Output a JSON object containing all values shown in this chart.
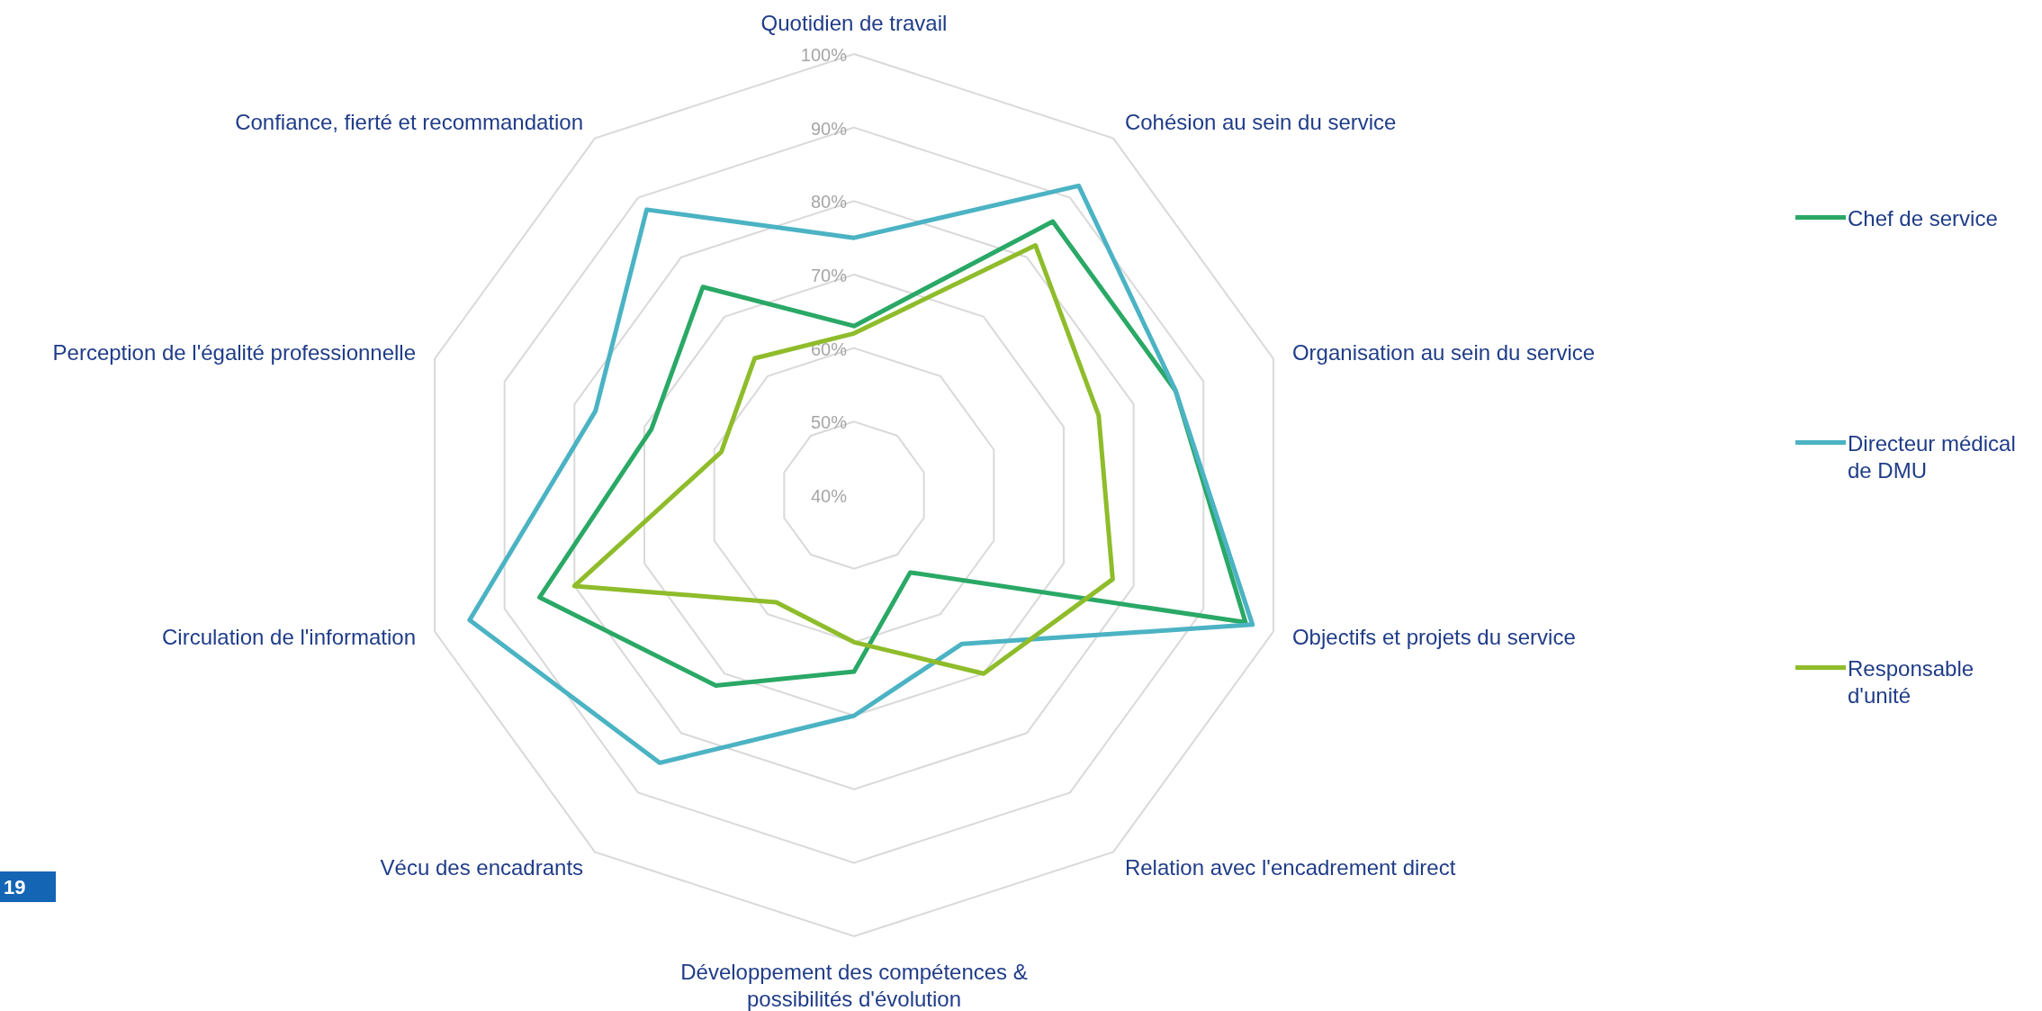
{
  "chart_data": {
    "type": "radar",
    "categories": [
      "Quotidien de travail",
      "Cohésion au sein du service",
      "Organisation au sein du service",
      "Objectifs et projets du service",
      "Relation avec l'encadrement direct",
      "Développement des compétences & possibilités d'évolution",
      "Vécu des encadrants",
      "Circulation de l'information",
      "Perception de l'égalité professionnelle",
      "Confiance, fierté et recommandation"
    ],
    "series": [
      {
        "name": "Chef de service",
        "color": "#2aa866",
        "values": [
          63,
          86,
          86,
          96,
          53,
          64,
          72,
          85,
          69,
          75
        ]
      },
      {
        "name": "Directeur médical de DMU",
        "color": "#4bb3c3",
        "values": [
          75,
          92,
          86,
          97,
          65,
          70,
          85,
          95,
          77,
          88
        ]
      },
      {
        "name": "Responsable d'unité",
        "color": "#8fbc2b",
        "values": [
          62,
          82,
          75,
          77,
          70,
          60,
          58,
          80,
          59,
          63
        ]
      }
    ],
    "ylim": [
      40,
      100
    ],
    "yticks": [
      {
        "value": 40,
        "label": "40%"
      },
      {
        "value": 50,
        "label": "50%"
      },
      {
        "value": 60,
        "label": "60%"
      },
      {
        "value": 70,
        "label": "70%"
      },
      {
        "value": 80,
        "label": "80%"
      },
      {
        "value": 90,
        "label": "90%"
      },
      {
        "value": 100,
        "label": "100%"
      }
    ],
    "grid": true,
    "legend": "right",
    "line_style": "solid",
    "marker": "none",
    "annotations": [
      "19"
    ]
  }
}
